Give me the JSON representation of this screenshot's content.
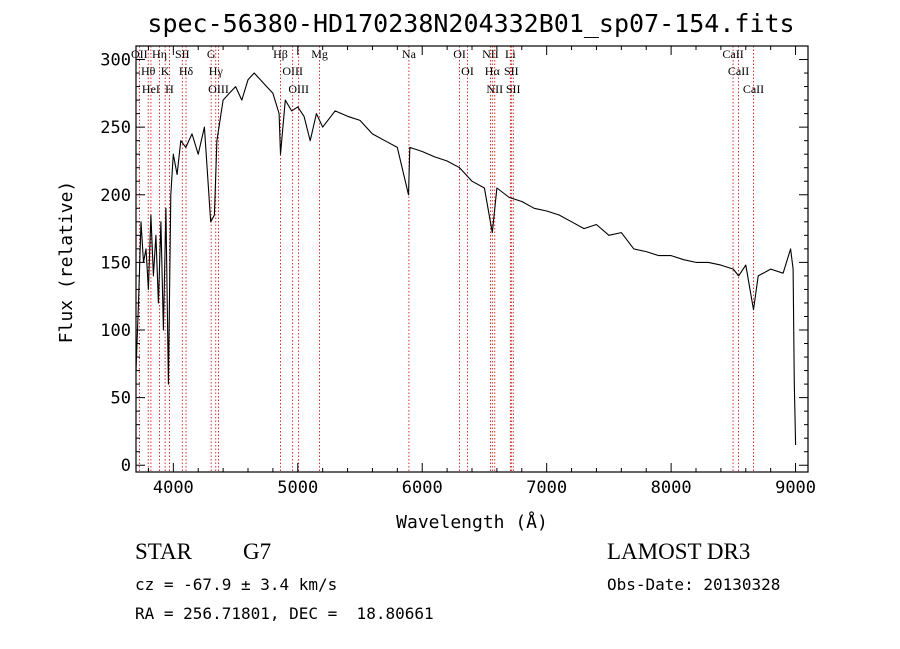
{
  "chart_data": {
    "type": "line",
    "title": "spec-56380-HD170238N204332B01_sp07-154.fits",
    "xlabel": "Wavelength (Å)",
    "ylabel": "Flux (relative)",
    "xlim": [
      3700,
      9100
    ],
    "ylim": [
      -5,
      310
    ],
    "xticks": [
      4000,
      5000,
      6000,
      7000,
      8000,
      9000
    ],
    "yticks": [
      0,
      50,
      100,
      150,
      200,
      250,
      300
    ],
    "series": [
      {
        "name": "flux",
        "x": [
          3700,
          3720,
          3740,
          3760,
          3780,
          3800,
          3820,
          3840,
          3860,
          3880,
          3900,
          3920,
          3940,
          3960,
          3980,
          4000,
          4030,
          4060,
          4100,
          4150,
          4200,
          4250,
          4300,
          4330,
          4350,
          4400,
          4450,
          4500,
          4550,
          4600,
          4650,
          4700,
          4750,
          4800,
          4850,
          4861,
          4900,
          4950,
          5000,
          5050,
          5100,
          5150,
          5200,
          5300,
          5400,
          5500,
          5600,
          5700,
          5800,
          5890,
          5900,
          6000,
          6100,
          6200,
          6300,
          6400,
          6500,
          6563,
          6600,
          6700,
          6800,
          6900,
          7000,
          7100,
          7200,
          7300,
          7400,
          7500,
          7600,
          7700,
          7800,
          7900,
          8000,
          8100,
          8200,
          8300,
          8400,
          8500,
          8542,
          8600,
          8662,
          8700,
          8800,
          8900,
          8960,
          8980,
          8990,
          9000
        ],
        "y": [
          70,
          120,
          180,
          150,
          160,
          130,
          185,
          140,
          170,
          120,
          180,
          100,
          190,
          60,
          200,
          230,
          215,
          240,
          235,
          245,
          230,
          250,
          180,
          185,
          240,
          270,
          275,
          280,
          270,
          285,
          290,
          285,
          280,
          275,
          260,
          230,
          270,
          262,
          265,
          258,
          240,
          260,
          250,
          262,
          258,
          255,
          245,
          240,
          235,
          200,
          235,
          232,
          228,
          225,
          220,
          210,
          205,
          172,
          205,
          198,
          195,
          190,
          188,
          185,
          180,
          175,
          178,
          170,
          172,
          160,
          158,
          155,
          155,
          152,
          150,
          150,
          148,
          145,
          140,
          148,
          115,
          140,
          145,
          142,
          160,
          145,
          60,
          15
        ]
      }
    ],
    "spectral_lines": [
      {
        "wavelength": 3727,
        "label": "OII"
      },
      {
        "wavelength": 3798,
        "label": "Hθ"
      },
      {
        "wavelength": 3820,
        "label": "HeI"
      },
      {
        "wavelength": 3889,
        "label": "Hη"
      },
      {
        "wavelength": 3934,
        "label": "K"
      },
      {
        "wavelength": 3969,
        "label": "H"
      },
      {
        "wavelength": 4072,
        "label": "SII"
      },
      {
        "wavelength": 4102,
        "label": "Hδ"
      },
      {
        "wavelength": 4304,
        "label": "G"
      },
      {
        "wavelength": 4341,
        "label": "Hγ"
      },
      {
        "wavelength": 4363,
        "label": "OIII"
      },
      {
        "wavelength": 4861,
        "label": "Hβ"
      },
      {
        "wavelength": 4959,
        "label": "OIII"
      },
      {
        "wavelength": 5007,
        "label": "OIII"
      },
      {
        "wavelength": 5175,
        "label": "Mg"
      },
      {
        "wavelength": 5893,
        "label": "Na"
      },
      {
        "wavelength": 6300,
        "label": "OI"
      },
      {
        "wavelength": 6364,
        "label": "OI"
      },
      {
        "wavelength": 6548,
        "label": "NII"
      },
      {
        "wavelength": 6563,
        "label": "Hα"
      },
      {
        "wavelength": 6583,
        "label": "NII"
      },
      {
        "wavelength": 6708,
        "label": "Li"
      },
      {
        "wavelength": 6716,
        "label": "SII"
      },
      {
        "wavelength": 6731,
        "label": "SII"
      },
      {
        "wavelength": 8498,
        "label": "CaII"
      },
      {
        "wavelength": 8542,
        "label": "CaII"
      },
      {
        "wavelength": 8662,
        "label": "CaII"
      }
    ]
  },
  "colors": {
    "spectrum": "#000000",
    "line_marker": "#cc0000",
    "axis": "#000000",
    "background": "#ffffff"
  },
  "info": {
    "object_class": "STAR",
    "subclass": "G7",
    "survey": "LAMOST DR3",
    "cz": "cz = -67.9 ± 3.4 km/s",
    "obs_date": "Obs-Date: 20130328",
    "coords": "RA = 256.71801, DEC =  18.80661"
  }
}
